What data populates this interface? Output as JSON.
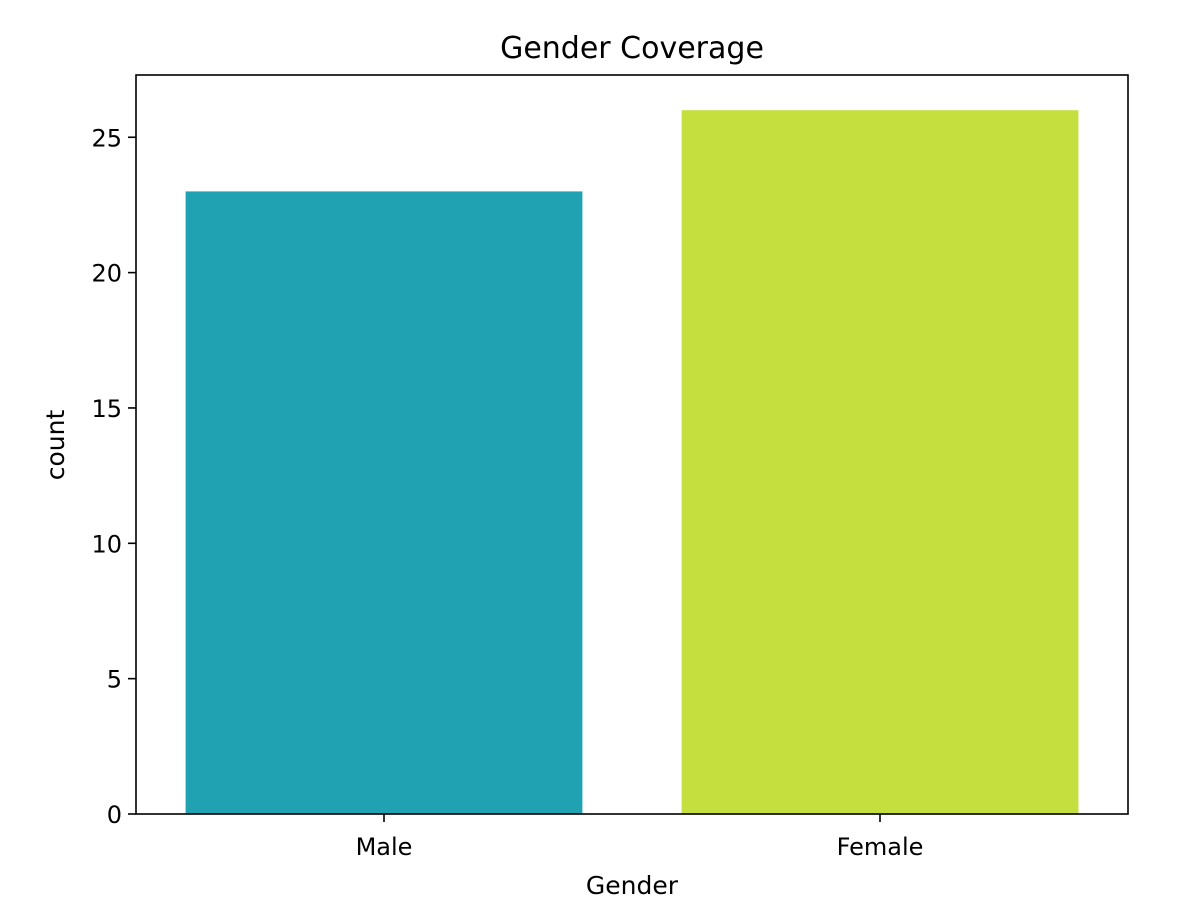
{
  "chart_data": {
    "type": "bar",
    "title": "Gender Coverage",
    "xlabel": "Gender",
    "ylabel": "count",
    "categories": [
      "Male",
      "Female"
    ],
    "values": [
      23,
      26
    ],
    "colors": [
      "#20a2b3",
      "#c5df3f"
    ],
    "ylim": [
      0,
      27.3
    ],
    "yticks": [
      0,
      5,
      10,
      15,
      20,
      25
    ],
    "grid": false
  }
}
